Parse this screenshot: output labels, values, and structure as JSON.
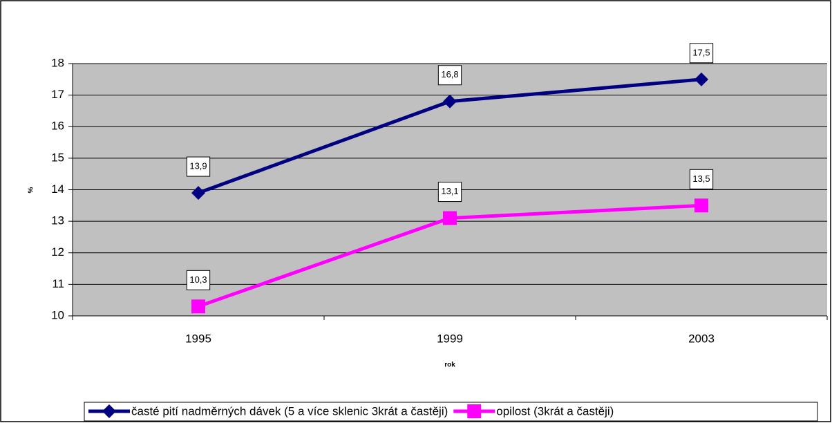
{
  "chart_data": {
    "type": "line",
    "categories": [
      "1995",
      "1999",
      "2003"
    ],
    "xlabel": "rok",
    "ylabel": "%",
    "ylim": [
      10,
      18
    ],
    "yticks": [
      10,
      11,
      12,
      13,
      14,
      15,
      16,
      17,
      18
    ],
    "grid": true,
    "legend": "bottom",
    "series": [
      {
        "name": "časté pití nadměrných dávek (5 a více sklenic 3krát a častěji)",
        "color": "#000080",
        "marker": "diamond",
        "values": [
          13.9,
          16.8,
          17.5
        ],
        "value_labels": [
          "13,9",
          "16,8",
          "17,5"
        ]
      },
      {
        "name": "opilost (3krát a častěji)",
        "color": "#ff00ff",
        "marker": "square",
        "values": [
          10.3,
          13.1,
          13.5
        ],
        "value_labels": [
          "10,3",
          "13,1",
          "13,5"
        ]
      }
    ]
  }
}
